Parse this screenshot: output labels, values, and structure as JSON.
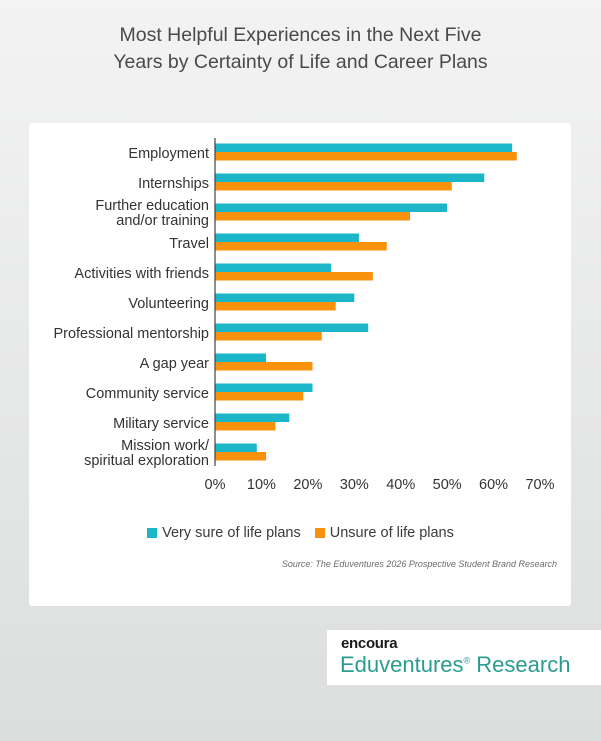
{
  "title_lines": [
    "Most Helpful Experiences in the Next Five",
    "Years by Certainty of Life and Career Plans"
  ],
  "chart_data": {
    "type": "bar",
    "orientation": "horizontal",
    "categories": [
      [
        "Employment"
      ],
      [
        "Internships"
      ],
      [
        "Further education",
        "and/or training"
      ],
      [
        "Travel"
      ],
      [
        "Activities with friends"
      ],
      [
        "Volunteering"
      ],
      [
        "Professional mentorship"
      ],
      [
        "A gap year"
      ],
      [
        "Community service"
      ],
      [
        "Military service"
      ],
      [
        "Mission work/",
        "spiritual exploration"
      ]
    ],
    "series": [
      {
        "name": "Very sure of life plans",
        "color": "#1bb7c9",
        "values": [
          64,
          58,
          50,
          31,
          25,
          30,
          33,
          11,
          21,
          16,
          9
        ]
      },
      {
        "name": "Unsure of life plans",
        "color": "#f8920c",
        "values": [
          65,
          51,
          42,
          37,
          34,
          26,
          23,
          21,
          19,
          13,
          11
        ]
      }
    ],
    "xlim": [
      0,
      70
    ],
    "xticks": [
      "0%",
      "10%",
      "20%",
      "30%",
      "40%",
      "50%",
      "60%",
      "70%"
    ],
    "grid": false,
    "legend_position": "bottom"
  },
  "legend": {
    "series0": "Very sure of life plans",
    "series1": "Unsure of life plans"
  },
  "source": "Source: The Eduventures 2026 Prospective Student Brand Research",
  "logo": {
    "top": "encoura",
    "bottom": "Eduventures",
    "registered": "®",
    "suffix": " Research"
  }
}
